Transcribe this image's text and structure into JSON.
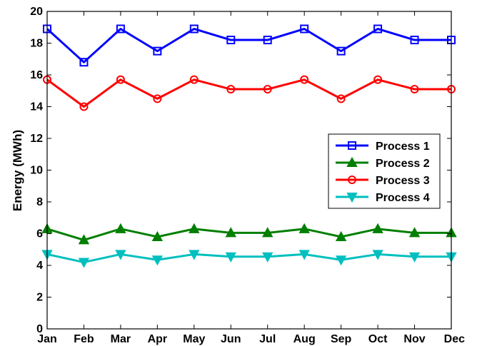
{
  "chart_data": {
    "type": "line",
    "title": "",
    "xlabel": "",
    "ylabel": "Energy (MWh)",
    "categories": [
      "Jan",
      "Feb",
      "Mar",
      "Apr",
      "May",
      "Jun",
      "Jul",
      "Aug",
      "Sep",
      "Oct",
      "Nov",
      "Dec"
    ],
    "ylim": [
      0,
      20
    ],
    "yticks": [
      0,
      2,
      4,
      6,
      8,
      10,
      12,
      14,
      16,
      18,
      20
    ],
    "grid": false,
    "legend_position": "right",
    "series": [
      {
        "name": "Process 1",
        "color": "#0000ff",
        "marker": "square",
        "values": [
          18.9,
          16.8,
          18.9,
          17.5,
          18.9,
          18.2,
          18.2,
          18.9,
          17.5,
          18.9,
          18.2,
          18.2
        ]
      },
      {
        "name": "Process 2",
        "color": "#007f00",
        "marker": "triangle-up",
        "values": [
          6.3,
          5.6,
          6.3,
          5.8,
          6.3,
          6.05,
          6.05,
          6.3,
          5.8,
          6.3,
          6.05,
          6.05
        ]
      },
      {
        "name": "Process 3",
        "color": "#ff0000",
        "marker": "circle",
        "values": [
          15.7,
          14.0,
          15.7,
          14.5,
          15.7,
          15.1,
          15.1,
          15.7,
          14.5,
          15.7,
          15.1,
          15.1
        ]
      },
      {
        "name": "Process 4",
        "color": "#00bfbf",
        "marker": "triangle-down",
        "values": [
          4.7,
          4.2,
          4.7,
          4.35,
          4.7,
          4.55,
          4.55,
          4.7,
          4.35,
          4.7,
          4.55,
          4.55
        ]
      }
    ]
  }
}
